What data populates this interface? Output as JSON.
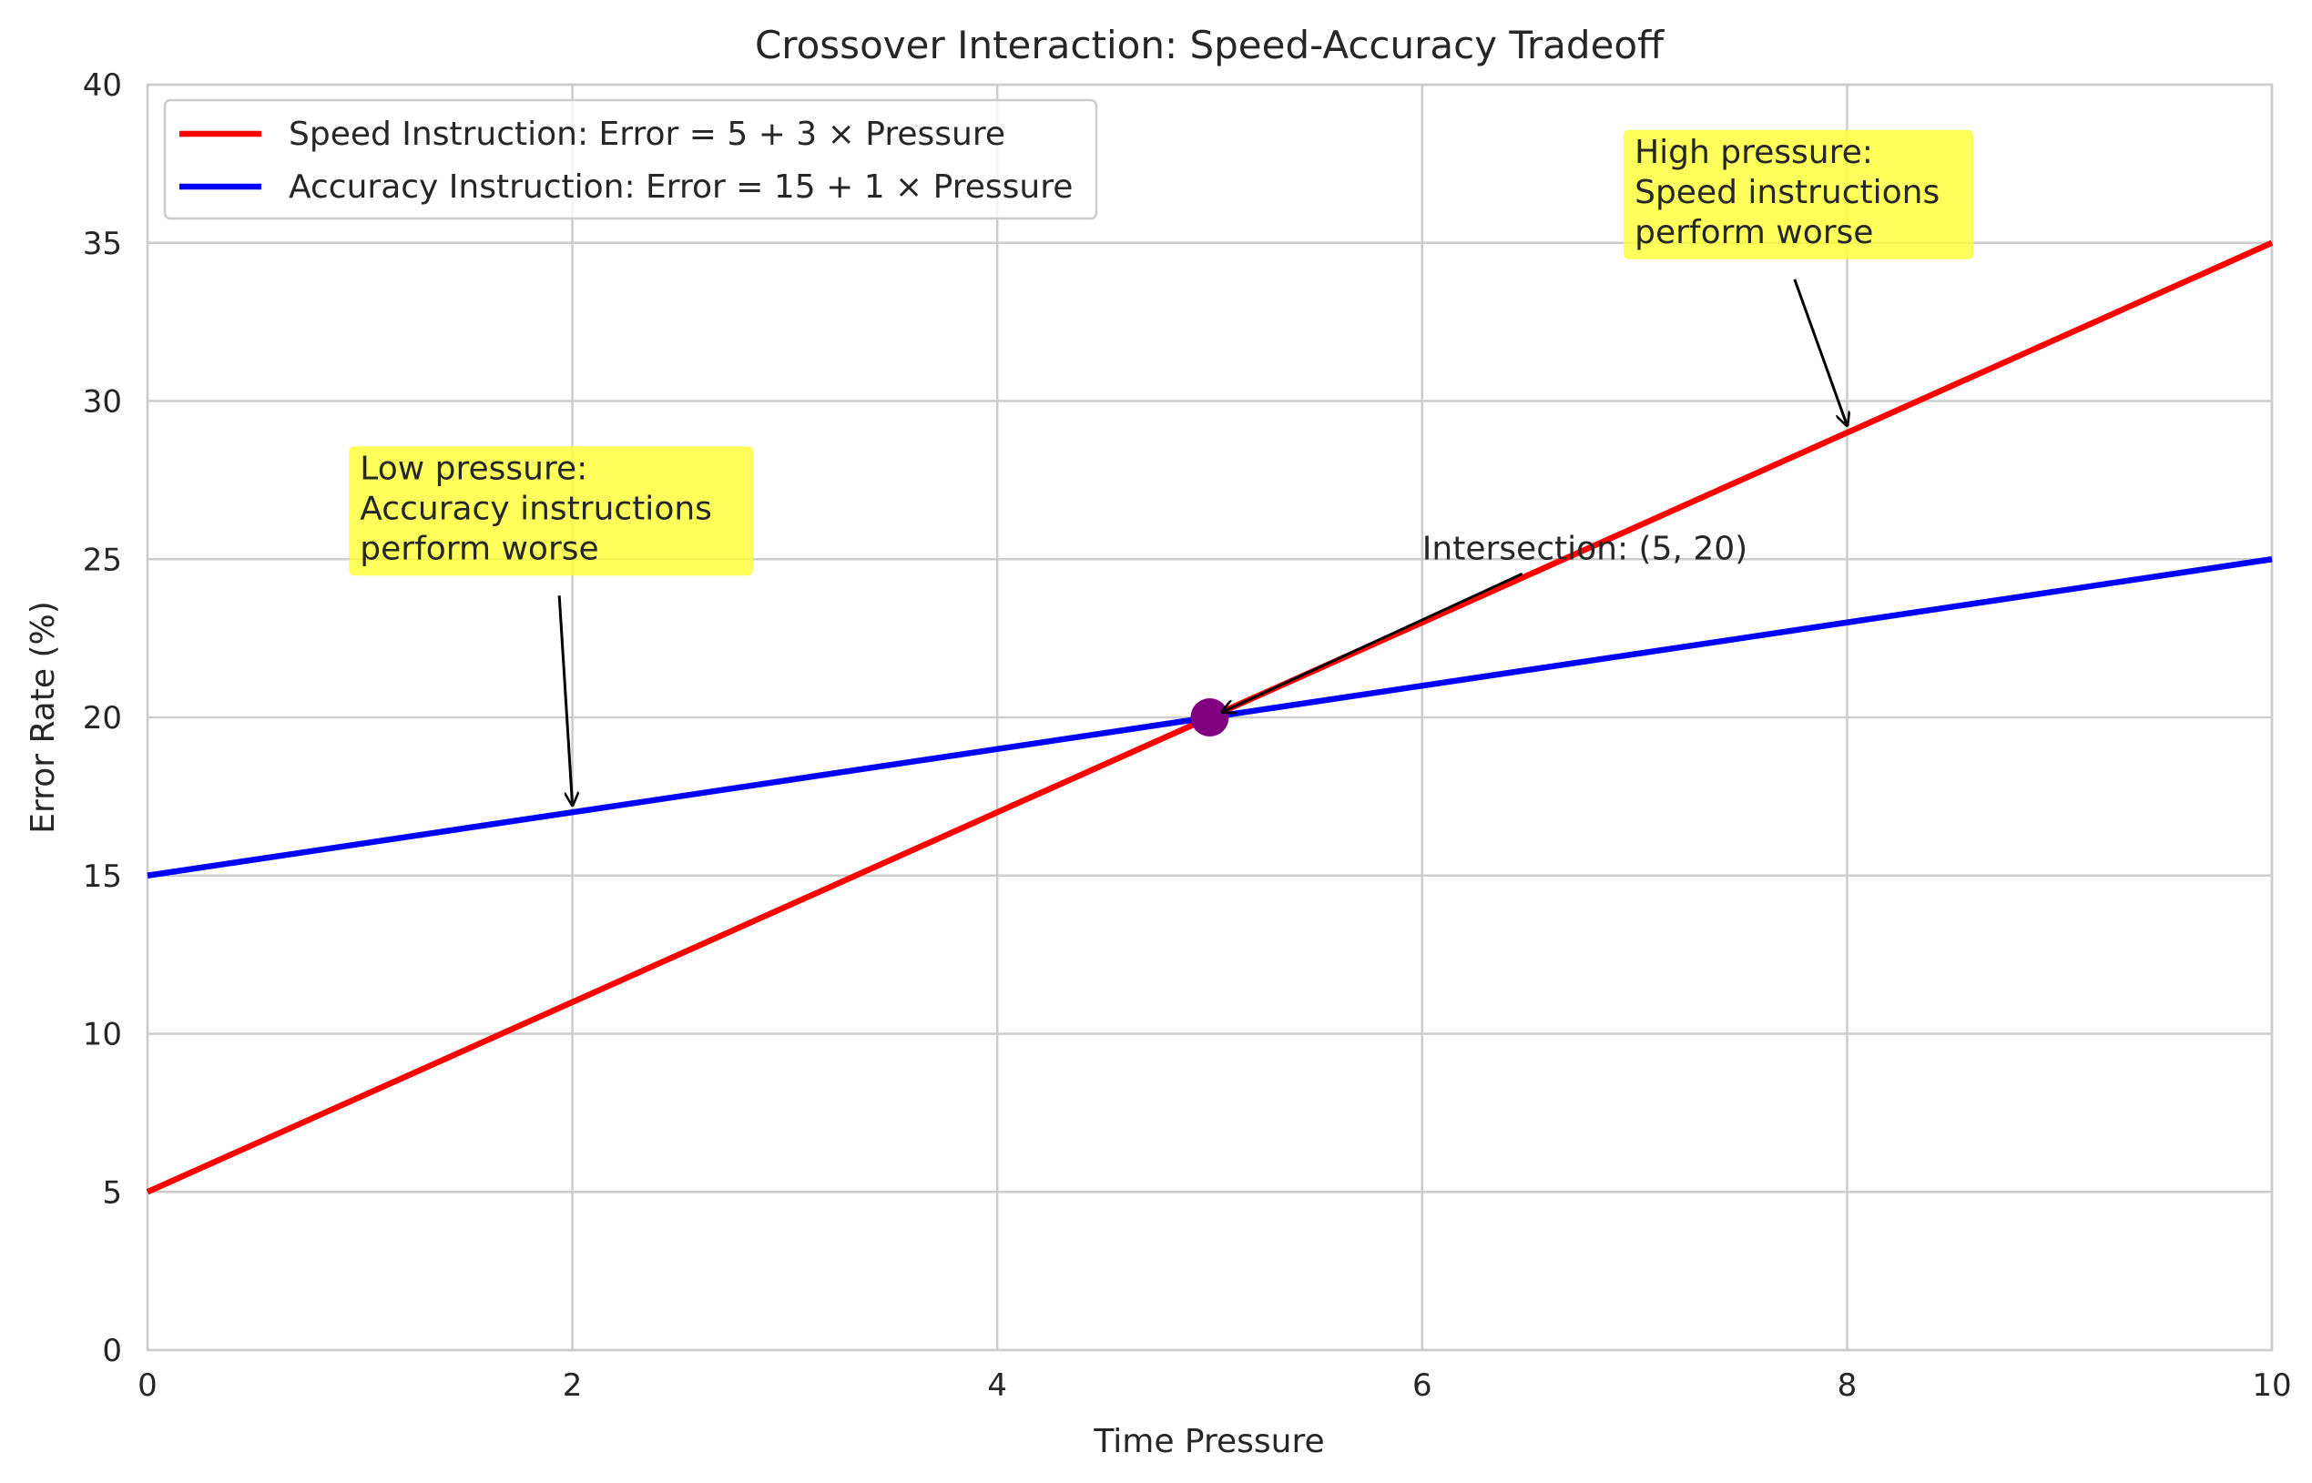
{
  "chart_data": {
    "type": "line",
    "title": "Crossover Interaction: Speed-Accuracy Tradeoff",
    "xlabel": "Time Pressure",
    "ylabel": "Error Rate (%)",
    "xlim": [
      0,
      10
    ],
    "ylim": [
      0,
      40
    ],
    "xticks": [
      0,
      2,
      4,
      6,
      8,
      10
    ],
    "yticks": [
      0,
      5,
      10,
      15,
      20,
      25,
      30,
      35,
      40
    ],
    "grid": true,
    "legend_position": "upper-left",
    "series": [
      {
        "name": "Speed Instruction: Error = 5 + 3 × Pressure",
        "color": "#ff0000",
        "x": [
          0,
          10
        ],
        "y": [
          5,
          35
        ]
      },
      {
        "name": "Accuracy Instruction: Error = 15 + 1 × Pressure",
        "color": "#0000ff",
        "x": [
          0,
          10
        ],
        "y": [
          15,
          25
        ]
      }
    ],
    "intersection": {
      "x": 5,
      "y": 20,
      "color": "#800080"
    },
    "annotations": [
      {
        "id": "low",
        "lines": [
          "Low pressure:",
          "Accuracy instructions",
          "perform worse"
        ],
        "text_x": 1,
        "text_y": 25,
        "target_x": 2,
        "target_y": 17,
        "box": true,
        "box_color": "#ffff33"
      },
      {
        "id": "high",
        "lines": [
          "High pressure:",
          "Speed instructions",
          "perform worse"
        ],
        "text_x": 7,
        "text_y": 35,
        "target_x": 8,
        "target_y": 29,
        "box": true,
        "box_color": "#ffff33"
      },
      {
        "id": "intersection",
        "lines": [
          "Intersection: (5, 20)"
        ],
        "text_x": 6,
        "text_y": 25,
        "target_x": 5,
        "target_y": 20,
        "box": false
      }
    ]
  }
}
